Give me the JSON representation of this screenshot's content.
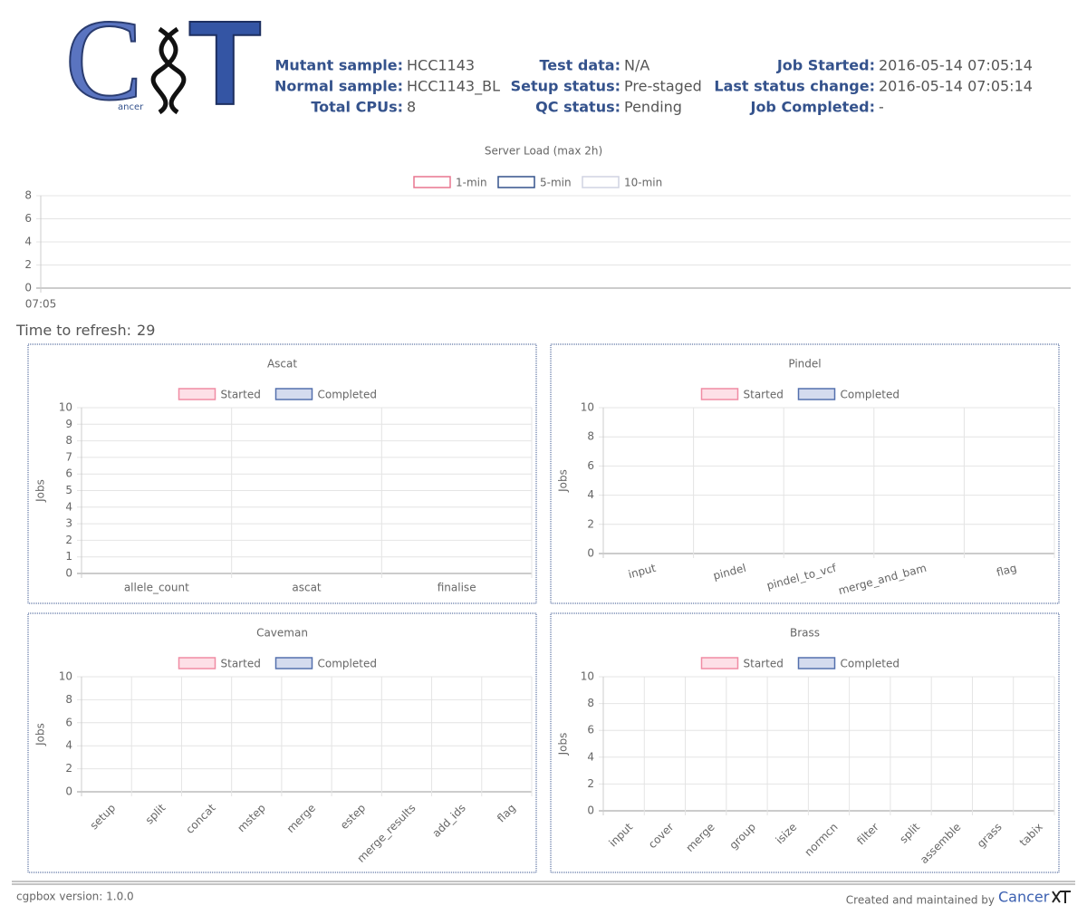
{
  "logo": {
    "letter1": "C",
    "letter2": "T",
    "small": "ancer"
  },
  "header": {
    "fields": [
      {
        "label": "Mutant sample:",
        "value": "HCC1143"
      },
      {
        "label": "Normal sample:",
        "value": "HCC1143_BL"
      },
      {
        "label": "Total CPUs:",
        "value": "8"
      },
      {
        "label": "Test data:",
        "value": "N/A"
      },
      {
        "label": "Setup status:",
        "value": "Pre-staged"
      },
      {
        "label": "QC status:",
        "value": "Pending"
      },
      {
        "label": "Job Started:",
        "value": "2016-05-14 07:05:14"
      },
      {
        "label": "Last status change:",
        "value": "2016-05-14 07:05:14"
      },
      {
        "label": "Job Completed:",
        "value": "-"
      }
    ]
  },
  "refresh": {
    "label": "Time to refresh:",
    "value": 29
  },
  "chart_data": [
    {
      "type": "line",
      "title": "Server Load (max 2h)",
      "categories": [
        "07:05"
      ],
      "series": [
        {
          "name": "1-min",
          "color": "#e8768f",
          "fill": "#ffffff",
          "values": [
            0
          ]
        },
        {
          "name": "5-min",
          "color": "#34528c",
          "fill": "#ffffff",
          "values": [
            0
          ]
        },
        {
          "name": "10-min",
          "color": "#d0d4e2",
          "fill": "#ffffff",
          "values": [
            0
          ]
        }
      ],
      "ylim": [
        0,
        8
      ],
      "yticks": [
        0,
        2,
        4,
        6,
        8
      ],
      "grid": true
    },
    {
      "type": "bar",
      "title": "Ascat",
      "ylabel": "Jobs",
      "categories": [
        "allele_count",
        "ascat",
        "finalise"
      ],
      "series": [
        {
          "name": "Started",
          "color": "#f08ca4",
          "fill": "#fde0e7",
          "values": [
            0,
            0,
            0
          ]
        },
        {
          "name": "Completed",
          "color": "#5470ad",
          "fill": "#d4dbee",
          "values": [
            0,
            0,
            0
          ]
        }
      ],
      "ylim": [
        0,
        10
      ],
      "yticks": [
        0,
        1,
        2,
        3,
        4,
        5,
        6,
        7,
        8,
        9,
        10
      ],
      "grid": true
    },
    {
      "type": "bar",
      "title": "Pindel",
      "ylabel": "Jobs",
      "categories": [
        "input",
        "pindel",
        "pindel_to_vcf",
        "merge_and_bam",
        "flag"
      ],
      "series": [
        {
          "name": "Started",
          "color": "#f08ca4",
          "fill": "#fde0e7",
          "values": [
            0,
            0,
            0,
            0,
            0
          ]
        },
        {
          "name": "Completed",
          "color": "#5470ad",
          "fill": "#d4dbee",
          "values": [
            0,
            0,
            0,
            0,
            0
          ]
        }
      ],
      "ylim": [
        0,
        10
      ],
      "yticks": [
        0,
        2,
        4,
        6,
        8,
        10
      ],
      "grid": true
    },
    {
      "type": "bar",
      "title": "Caveman",
      "ylabel": "Jobs",
      "categories": [
        "setup",
        "split",
        "concat",
        "mstep",
        "merge",
        "estep",
        "merge_results",
        "add_ids",
        "flag"
      ],
      "series": [
        {
          "name": "Started",
          "color": "#f08ca4",
          "fill": "#fde0e7",
          "values": [
            0,
            0,
            0,
            0,
            0,
            0,
            0,
            0,
            0
          ]
        },
        {
          "name": "Completed",
          "color": "#5470ad",
          "fill": "#d4dbee",
          "values": [
            0,
            0,
            0,
            0,
            0,
            0,
            0,
            0,
            0
          ]
        }
      ],
      "ylim": [
        0,
        10
      ],
      "yticks": [
        0,
        2,
        4,
        6,
        8,
        10
      ],
      "grid": true
    },
    {
      "type": "bar",
      "title": "Brass",
      "ylabel": "Jobs",
      "categories": [
        "input",
        "cover",
        "merge",
        "group",
        "isize",
        "normcn",
        "filter",
        "split",
        "assemble",
        "grass",
        "tabix"
      ],
      "series": [
        {
          "name": "Started",
          "color": "#f08ca4",
          "fill": "#fde0e7",
          "values": [
            0,
            0,
            0,
            0,
            0,
            0,
            0,
            0,
            0,
            0,
            0
          ]
        },
        {
          "name": "Completed",
          "color": "#5470ad",
          "fill": "#d4dbee",
          "values": [
            0,
            0,
            0,
            0,
            0,
            0,
            0,
            0,
            0,
            0,
            0
          ]
        }
      ],
      "ylim": [
        0,
        10
      ],
      "yticks": [
        0,
        2,
        4,
        6,
        8,
        10
      ],
      "grid": true
    }
  ],
  "footer": {
    "version": "cgpbox version: 1.0.0",
    "credit": "Created and maintained by",
    "brand": "Cancer"
  }
}
